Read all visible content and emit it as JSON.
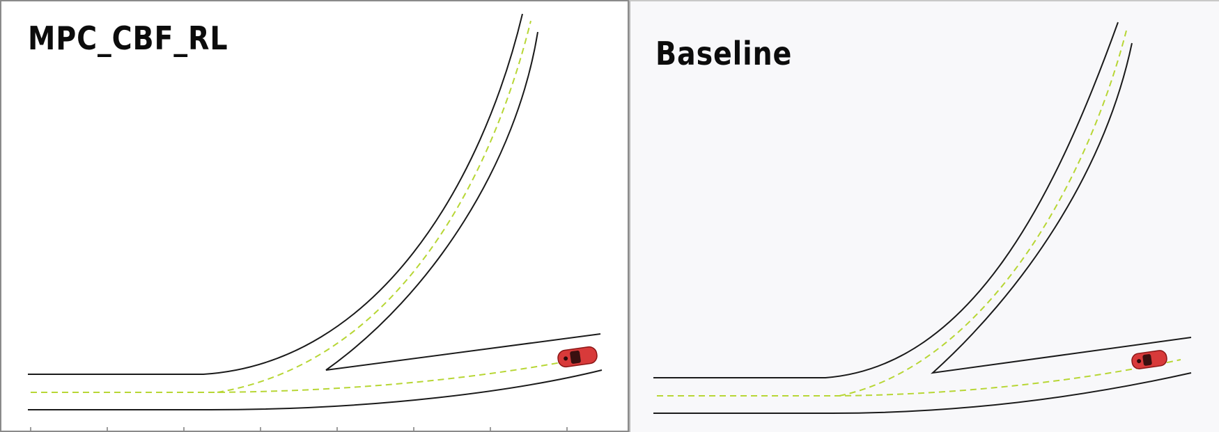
{
  "panels": [
    {
      "title": "MPC_CBF_RL"
    },
    {
      "title": "Baseline"
    }
  ],
  "colors": {
    "road_edge": "#1a1a1a",
    "lane_center": "#b7d634",
    "vehicle": "#d83a3a",
    "left_background": "#ffffff",
    "right_background": "#f8f8fa"
  },
  "icons": {
    "vehicle": "red-car-icon"
  }
}
